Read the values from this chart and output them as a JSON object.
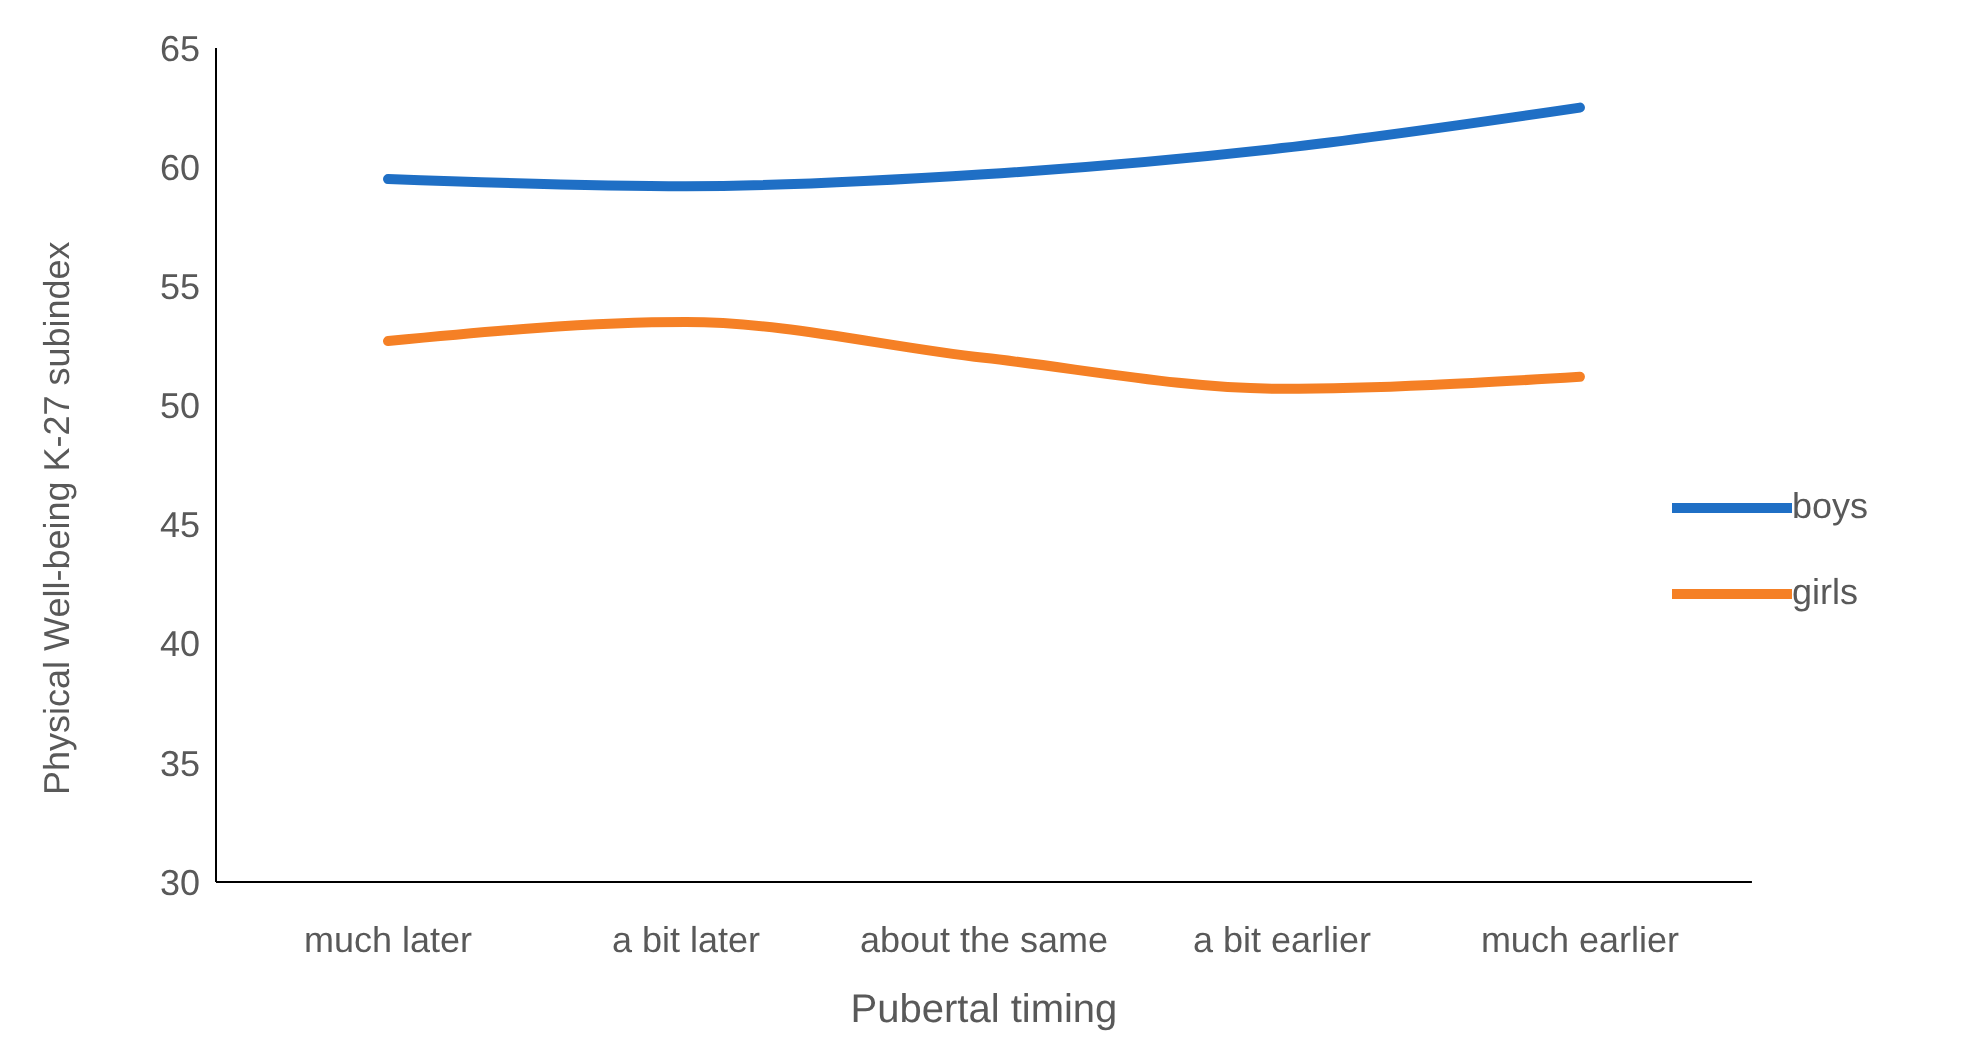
{
  "chart_data": {
    "type": "line",
    "xlabel": "Pubertal timing",
    "ylabel": "Physical Well-being K-27 subindex",
    "categories": [
      "much later",
      "a bit later",
      "about the same",
      "a bit earlier",
      "much earlier"
    ],
    "series": [
      {
        "name": "boys",
        "color": "#1f6fc5",
        "values": [
          59.5,
          59.2,
          59.7,
          60.8,
          62.5
        ]
      },
      {
        "name": "girls",
        "color": "#f58025",
        "values": [
          52.7,
          53.5,
          52.0,
          50.7,
          51.2
        ]
      }
    ],
    "ylim": [
      30,
      65
    ],
    "yticks": [
      30,
      35,
      40,
      45,
      50,
      55,
      60,
      65
    ],
    "grid": false,
    "legend": "right",
    "marker": "none",
    "line_style": "solid"
  }
}
